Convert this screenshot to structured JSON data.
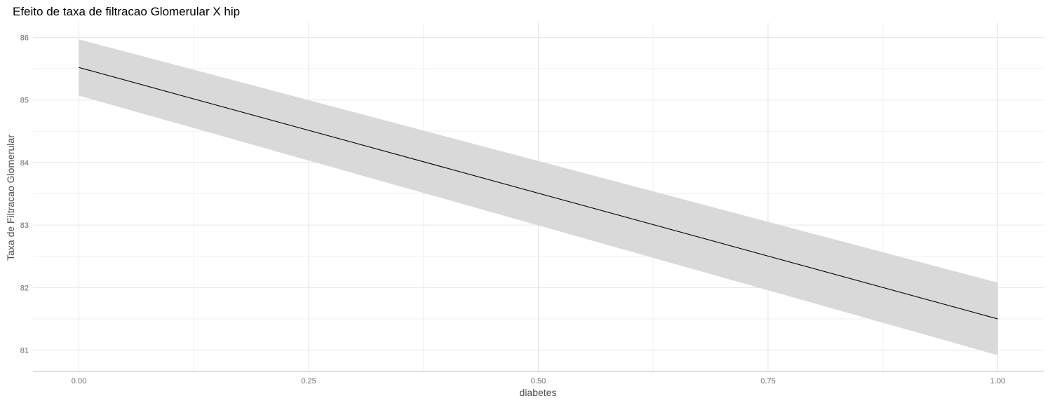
{
  "chart_data": {
    "type": "line",
    "title": "Efeito de taxa de filtracao Glomerular X hip",
    "xlabel": "diabetes",
    "ylabel": "Taxa de Filtracao Glomerular",
    "xlim": [
      -0.05,
      1.05
    ],
    "ylim": [
      80.66,
      86.24
    ],
    "x_ticks": [
      0.0,
      0.25,
      0.5,
      0.75,
      1.0
    ],
    "x_tick_labels": [
      "0.00",
      "0.25",
      "0.50",
      "0.75",
      "1.00"
    ],
    "y_ticks": [
      81,
      82,
      83,
      84,
      85,
      86
    ],
    "y_tick_labels": [
      "81",
      "82",
      "83",
      "84",
      "85",
      "86"
    ],
    "grid": true,
    "series": [
      {
        "x": [
          0.0,
          1.0
        ],
        "y": [
          85.52,
          81.5
        ],
        "lower": [
          85.07,
          80.92
        ],
        "upper": [
          85.97,
          82.08
        ],
        "line_color": "#000000",
        "band_color": "#d9d9d9"
      }
    ]
  }
}
